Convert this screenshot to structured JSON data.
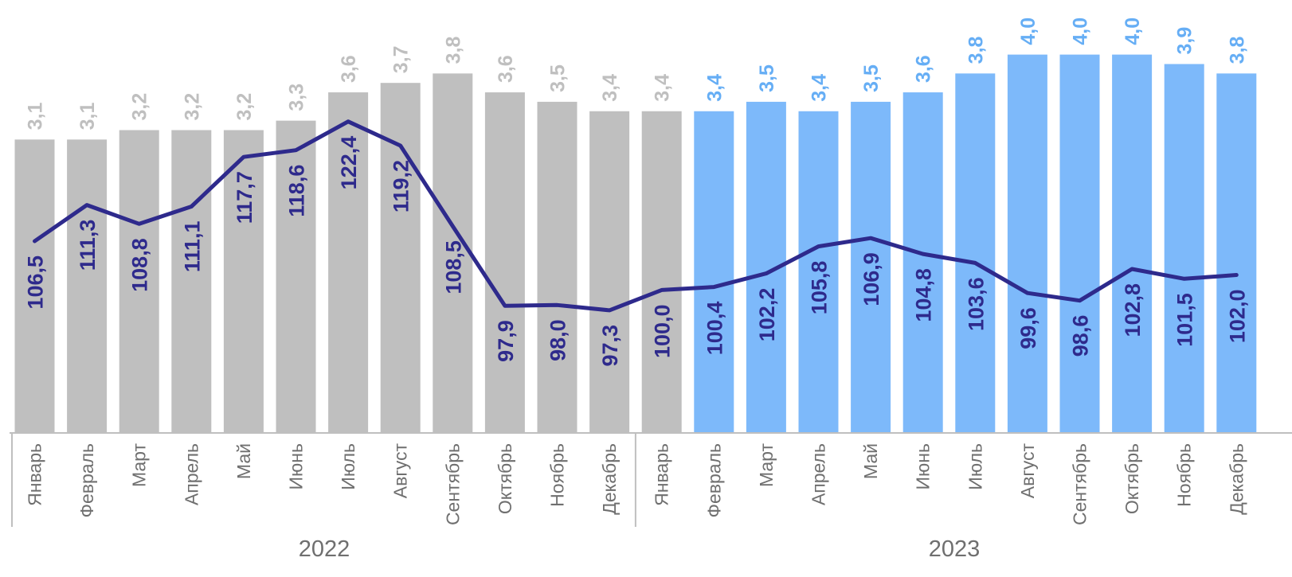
{
  "chart_data": {
    "type": "bar",
    "categories": [
      "Январь",
      "Февраль",
      "Март",
      "Апрель",
      "Май",
      "Июнь",
      "Июль",
      "Август",
      "Сентябрь",
      "Октябрь",
      "Ноябрь",
      "Декабрь",
      "Январь",
      "Февраль",
      "Март",
      "Апрель",
      "Май",
      "Июнь",
      "Июль",
      "Август",
      "Сентябрь",
      "Октябрь",
      "Ноябрь",
      "Декабрь"
    ],
    "groups": [
      {
        "label": "2022",
        "count": 12
      },
      {
        "label": "2023",
        "count": 12
      }
    ],
    "series": [
      {
        "type": "bar",
        "values": [
          3.1,
          3.1,
          3.2,
          3.2,
          3.2,
          3.3,
          3.6,
          3.7,
          3.8,
          3.6,
          3.5,
          3.4,
          3.4,
          3.4,
          3.5,
          3.4,
          3.5,
          3.6,
          3.8,
          4.0,
          4.0,
          4.0,
          3.9,
          3.8
        ],
        "labels": [
          "3,1",
          "3,1",
          "3,2",
          "3,2",
          "3,2",
          "3,3",
          "3,6",
          "3,7",
          "3,8",
          "3,6",
          "3,5",
          "3,4",
          "3,4",
          "3,4",
          "3,5",
          "3,4",
          "3,5",
          "3,6",
          "3,8",
          "4,0",
          "4,0",
          "4,0",
          "3,9",
          "3,8"
        ],
        "colors": [
          "#bfbfbf",
          "#7db9fa"
        ],
        "label_colors": [
          "#bfbfbf",
          "#66aef5"
        ],
        "color_split_index": 13
      },
      {
        "type": "line",
        "values": [
          106.5,
          111.3,
          108.8,
          111.1,
          117.7,
          118.6,
          122.4,
          119.2,
          108.5,
          97.9,
          98.0,
          97.3,
          100.0,
          100.4,
          102.2,
          105.8,
          106.9,
          104.8,
          103.6,
          99.6,
          98.6,
          102.8,
          101.5,
          102.0
        ],
        "labels": [
          "106,5",
          "111,3",
          "108,8",
          "111,1",
          "117,7",
          "118,6",
          "122,4",
          "119,2",
          "108,5",
          "97,9",
          "98,0",
          "97,3",
          "100,0",
          "100,4",
          "102,2",
          "105,8",
          "106,9",
          "104,8",
          "103,6",
          "99,6",
          "98,6",
          "102,8",
          "101,5",
          "102,0"
        ],
        "color": "#2e2a8c",
        "ylim": [
          58,
          144
        ]
      }
    ],
    "ylim": [
      0,
      4.35
    ],
    "grid": false
  }
}
